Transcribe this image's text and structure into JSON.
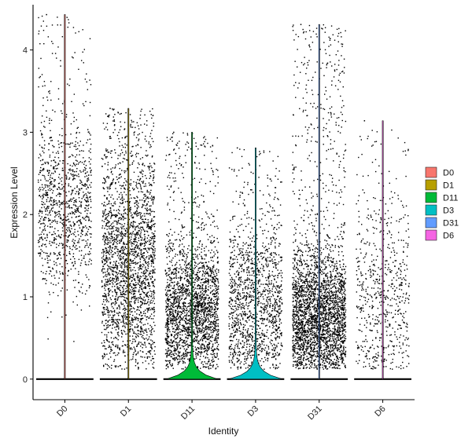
{
  "chart_data": {
    "type": "violin",
    "title": "",
    "xlabel": "Identity",
    "ylabel": "Expression Level",
    "ylim": [
      -0.25,
      4.55
    ],
    "yticks": [
      0,
      1,
      2,
      3,
      4
    ],
    "grid": false,
    "legend_position": "right",
    "categories": [
      "D0",
      "D1",
      "D11",
      "D3",
      "D31",
      "D6"
    ],
    "series": [
      {
        "name": "D0",
        "color": "#F8766D",
        "max": 4.43,
        "dense_range": [
          1.0,
          2.6
        ],
        "dense_center": 2.1,
        "n_points": 1100,
        "zero_density": 0.05
      },
      {
        "name": "D1",
        "color": "#B79F00",
        "max": 3.29,
        "dense_range": [
          0.3,
          2.4
        ],
        "dense_center": 1.4,
        "n_points": 2400,
        "zero_density": 0.05
      },
      {
        "name": "D11",
        "color": "#00BA38",
        "max": 3.0,
        "dense_range": [
          0.3,
          1.6
        ],
        "dense_center": 0.8,
        "n_points": 2300,
        "zero_density": 0.85
      },
      {
        "name": "D3",
        "color": "#00BFC4",
        "max": 2.81,
        "dense_range": [
          0.3,
          1.9
        ],
        "dense_center": 0.9,
        "n_points": 1400,
        "zero_density": 0.9
      },
      {
        "name": "D31",
        "color": "#619CFF",
        "max": 4.31,
        "dense_range": [
          0.3,
          1.6
        ],
        "dense_center": 0.75,
        "n_points": 3000,
        "zero_density": 0.05
      },
      {
        "name": "D6",
        "color": "#F564E3",
        "max": 3.14,
        "dense_range": [
          0.2,
          2.2
        ],
        "dense_center": 1.0,
        "n_points": 650,
        "zero_density": 0.05
      }
    ],
    "legend": {
      "items": [
        {
          "label": "D0",
          "color": "#F8766D"
        },
        {
          "label": "D1",
          "color": "#B79F00"
        },
        {
          "label": "D11",
          "color": "#00BA38"
        },
        {
          "label": "D3",
          "color": "#00BFC4"
        },
        {
          "label": "D31",
          "color": "#619CFF"
        },
        {
          "label": "D6",
          "color": "#F564E3"
        }
      ]
    }
  }
}
